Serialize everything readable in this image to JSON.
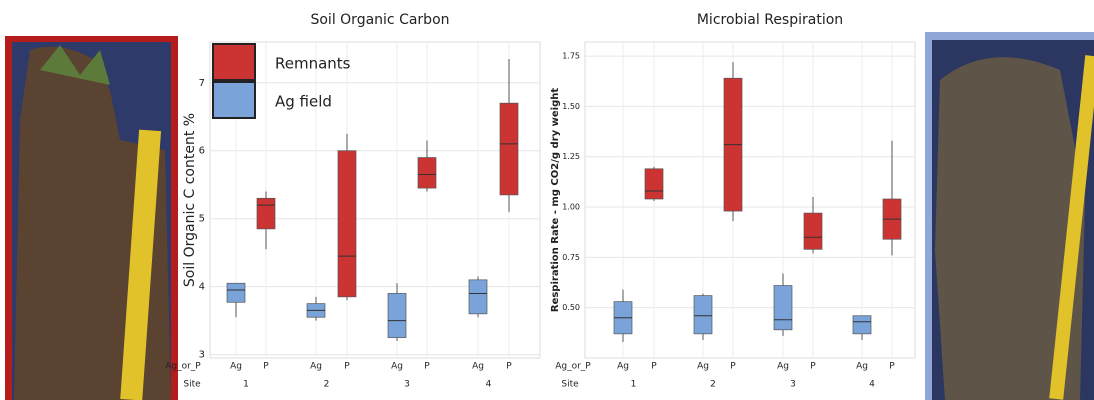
{
  "chart_data": [
    {
      "type": "box",
      "title": "Soil Organic Carbon",
      "ylabel": "Soil Organic C content %",
      "xlabel": "Ag_or_P",
      "site_label": "Site",
      "categories": [
        "Ag",
        "P",
        "Ag",
        "P",
        "Ag",
        "P",
        "Ag",
        "P"
      ],
      "sites": [
        "1",
        "2",
        "3",
        "4"
      ],
      "ylim": [
        2.95,
        7.6
      ],
      "yticks": [
        3,
        4,
        5,
        6,
        7
      ],
      "grid": true,
      "legend": "upper left",
      "series": [
        {
          "name": "Remnants",
          "color": "#cc3333",
          "boxes": [
            {
              "min": 4.55,
              "q1": 4.85,
              "median": 5.2,
              "q3": 5.3,
              "max": 5.4
            },
            {
              "min": 3.8,
              "q1": 3.85,
              "median": 4.45,
              "q3": 6.0,
              "max": 6.25
            },
            {
              "min": 5.4,
              "q1": 5.45,
              "median": 5.65,
              "q3": 5.9,
              "max": 6.15
            },
            {
              "min": 5.1,
              "q1": 5.35,
              "median": 6.1,
              "q3": 6.7,
              "max": 7.35
            }
          ]
        },
        {
          "name": "Ag field",
          "color": "#7aa3d9",
          "boxes": [
            {
              "min": 3.55,
              "q1": 3.77,
              "median": 3.95,
              "q3": 4.05,
              "max": 4.05
            },
            {
              "min": 3.5,
              "q1": 3.55,
              "median": 3.65,
              "q3": 3.75,
              "max": 3.85
            },
            {
              "min": 3.2,
              "q1": 3.25,
              "median": 3.5,
              "q3": 3.9,
              "max": 4.05
            },
            {
              "min": 3.55,
              "q1": 3.6,
              "median": 3.9,
              "q3": 4.1,
              "max": 4.15
            }
          ]
        }
      ]
    },
    {
      "type": "box",
      "title": "Microbial Respiration",
      "ylabel": "Respiration Rate - mg CO2/g dry weight",
      "xlabel": "Ag_or_P",
      "site_label": "Site",
      "categories": [
        "Ag",
        "P",
        "Ag",
        "P",
        "Ag",
        "P",
        "Ag",
        "P"
      ],
      "sites": [
        "1",
        "2",
        "3",
        "4"
      ],
      "ylim": [
        0.25,
        1.82
      ],
      "yticks": [
        {
          "value": 0.5,
          "label": "0.50"
        },
        {
          "value": 0.75,
          "label": "0.75"
        },
        {
          "value": 1,
          "label": "1.00"
        },
        {
          "value": 1.25,
          "label": "1.25"
        },
        {
          "value": 1.5,
          "label": "1.50"
        },
        {
          "value": 1.75,
          "label": "1.75"
        }
      ],
      "grid": true,
      "series": [
        {
          "color": "#cc3333",
          "boxes": [
            {
              "min": 1.03,
              "q1": 1.04,
              "median": 1.08,
              "q3": 1.19,
              "max": 1.2
            },
            {
              "min": 0.93,
              "q1": 0.98,
              "median": 1.31,
              "q3": 1.64,
              "max": 1.72
            },
            {
              "min": 0.77,
              "q1": 0.79,
              "median": 0.85,
              "q3": 0.97,
              "max": 1.05
            },
            {
              "min": 0.76,
              "q1": 0.84,
              "median": 0.94,
              "q3": 1.04,
              "max": 1.33
            }
          ]
        },
        {
          "color": "#7aa3d9",
          "boxes": [
            {
              "min": 0.33,
              "q1": 0.37,
              "median": 0.45,
              "q3": 0.53,
              "max": 0.59
            },
            {
              "min": 0.34,
              "q1": 0.37,
              "median": 0.46,
              "q3": 0.56,
              "max": 0.57
            },
            {
              "min": 0.36,
              "q1": 0.39,
              "median": 0.44,
              "q3": 0.61,
              "max": 0.67
            },
            {
              "min": 0.34,
              "q1": 0.37,
              "median": 0.43,
              "q3": 0.46,
              "max": 0.46
            }
          ]
        }
      ]
    }
  ]
}
